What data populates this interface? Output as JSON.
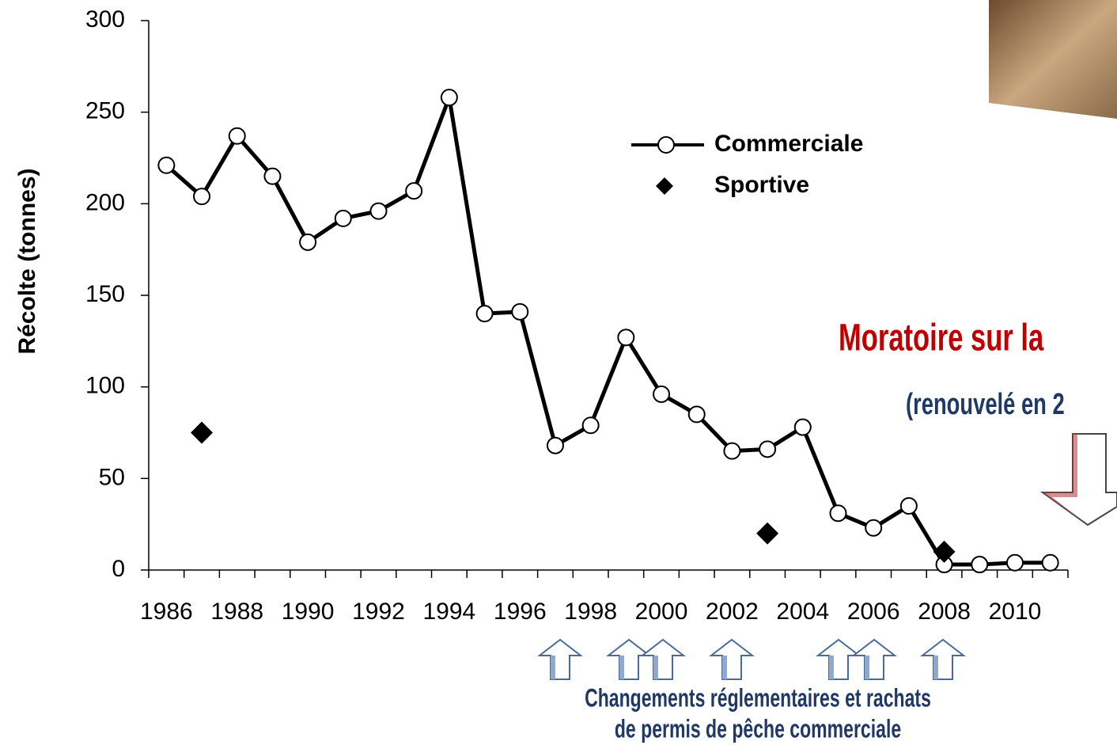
{
  "chart_data": {
    "type": "line",
    "categories": [
      "1986",
      null,
      "1988",
      null,
      "1990",
      null,
      "1992",
      null,
      "1994",
      null,
      "1996",
      null,
      "1998",
      null,
      "2000",
      null,
      "2002",
      null,
      "2004",
      null,
      "2006",
      null,
      "2008",
      null,
      "2010",
      null
    ],
    "y_label": "Récolte (tonnes)",
    "series": [
      {
        "name": "Commerciale",
        "color": "#000000",
        "marker": "circle",
        "line": true,
        "values": [
          221,
          204,
          237,
          215,
          179,
          192,
          196,
          207,
          258,
          140,
          141,
          68,
          79,
          127,
          96,
          85,
          65,
          66,
          78,
          31,
          23,
          35,
          3,
          3,
          4,
          4
        ]
      },
      {
        "name": "Sportive",
        "color": "#000000",
        "marker": "diamond",
        "line": false,
        "values": [
          null,
          75,
          null,
          null,
          null,
          null,
          null,
          null,
          null,
          null,
          null,
          null,
          null,
          null,
          null,
          null,
          null,
          20,
          null,
          null,
          null,
          null,
          10,
          null,
          null,
          null
        ]
      }
    ],
    "ylim": [
      0,
      300
    ],
    "yticks": [
      0,
      50,
      100,
      150,
      200,
      250,
      300
    ],
    "annotations": [
      "Moratoire sur la",
      "(renouvelé en 2",
      "Changements réglementaires et rachats",
      "de permis de pêche commerciale"
    ]
  }
}
